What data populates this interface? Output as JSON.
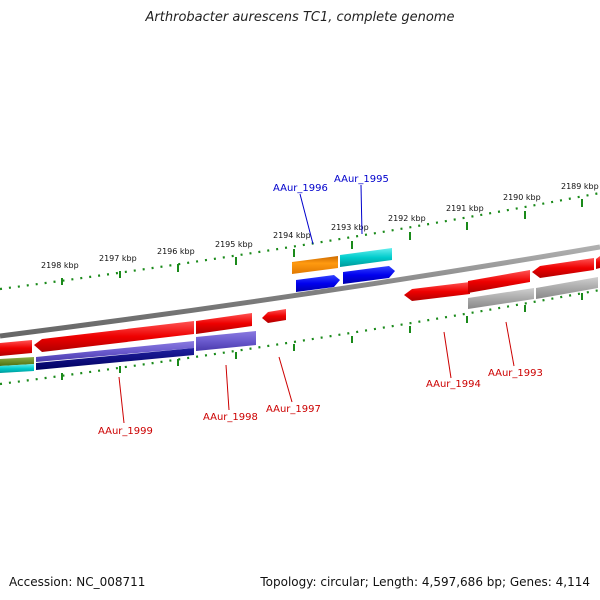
{
  "title": "Arthrobacter aurescens TC1, complete genome",
  "footer": {
    "accession": "Accession: NC_008711",
    "summary": "Topology: circular; Length: 4,597,686 bp; Genes: 4,114"
  },
  "ruler": {
    "labels": [
      "2198 kbp",
      "2197 kbp",
      "2196 kbp",
      "2195 kbp",
      "2194 kbp",
      "2193 kbp",
      "2192 kbp",
      "2191 kbp",
      "2190 kbp",
      "2189 kbp"
    ]
  },
  "genes": [
    {
      "name": "AAur_1996",
      "color": "#0000cc"
    },
    {
      "name": "AAur_1995",
      "color": "#0000cc"
    },
    {
      "name": "AAur_1994",
      "color": "#cc0000"
    },
    {
      "name": "AAur_1993",
      "color": "#cc0000"
    },
    {
      "name": "AAur_1997",
      "color": "#cc0000"
    },
    {
      "name": "AAur_1998",
      "color": "#cc0000"
    },
    {
      "name": "AAur_1999",
      "color": "#cc0000"
    }
  ],
  "colors": {
    "backbone": "#808080",
    "tick": "#1a8a1a",
    "gene_red": "#ee0000",
    "gene_blue": "#0000ee",
    "gene_cyan": "#00cccc",
    "gene_orange": "#ff8c00",
    "gene_gray": "#aaaaaa",
    "gene_purple": "#6a5acd",
    "gene_navy": "#000080",
    "gene_olive": "#6b8e23"
  }
}
